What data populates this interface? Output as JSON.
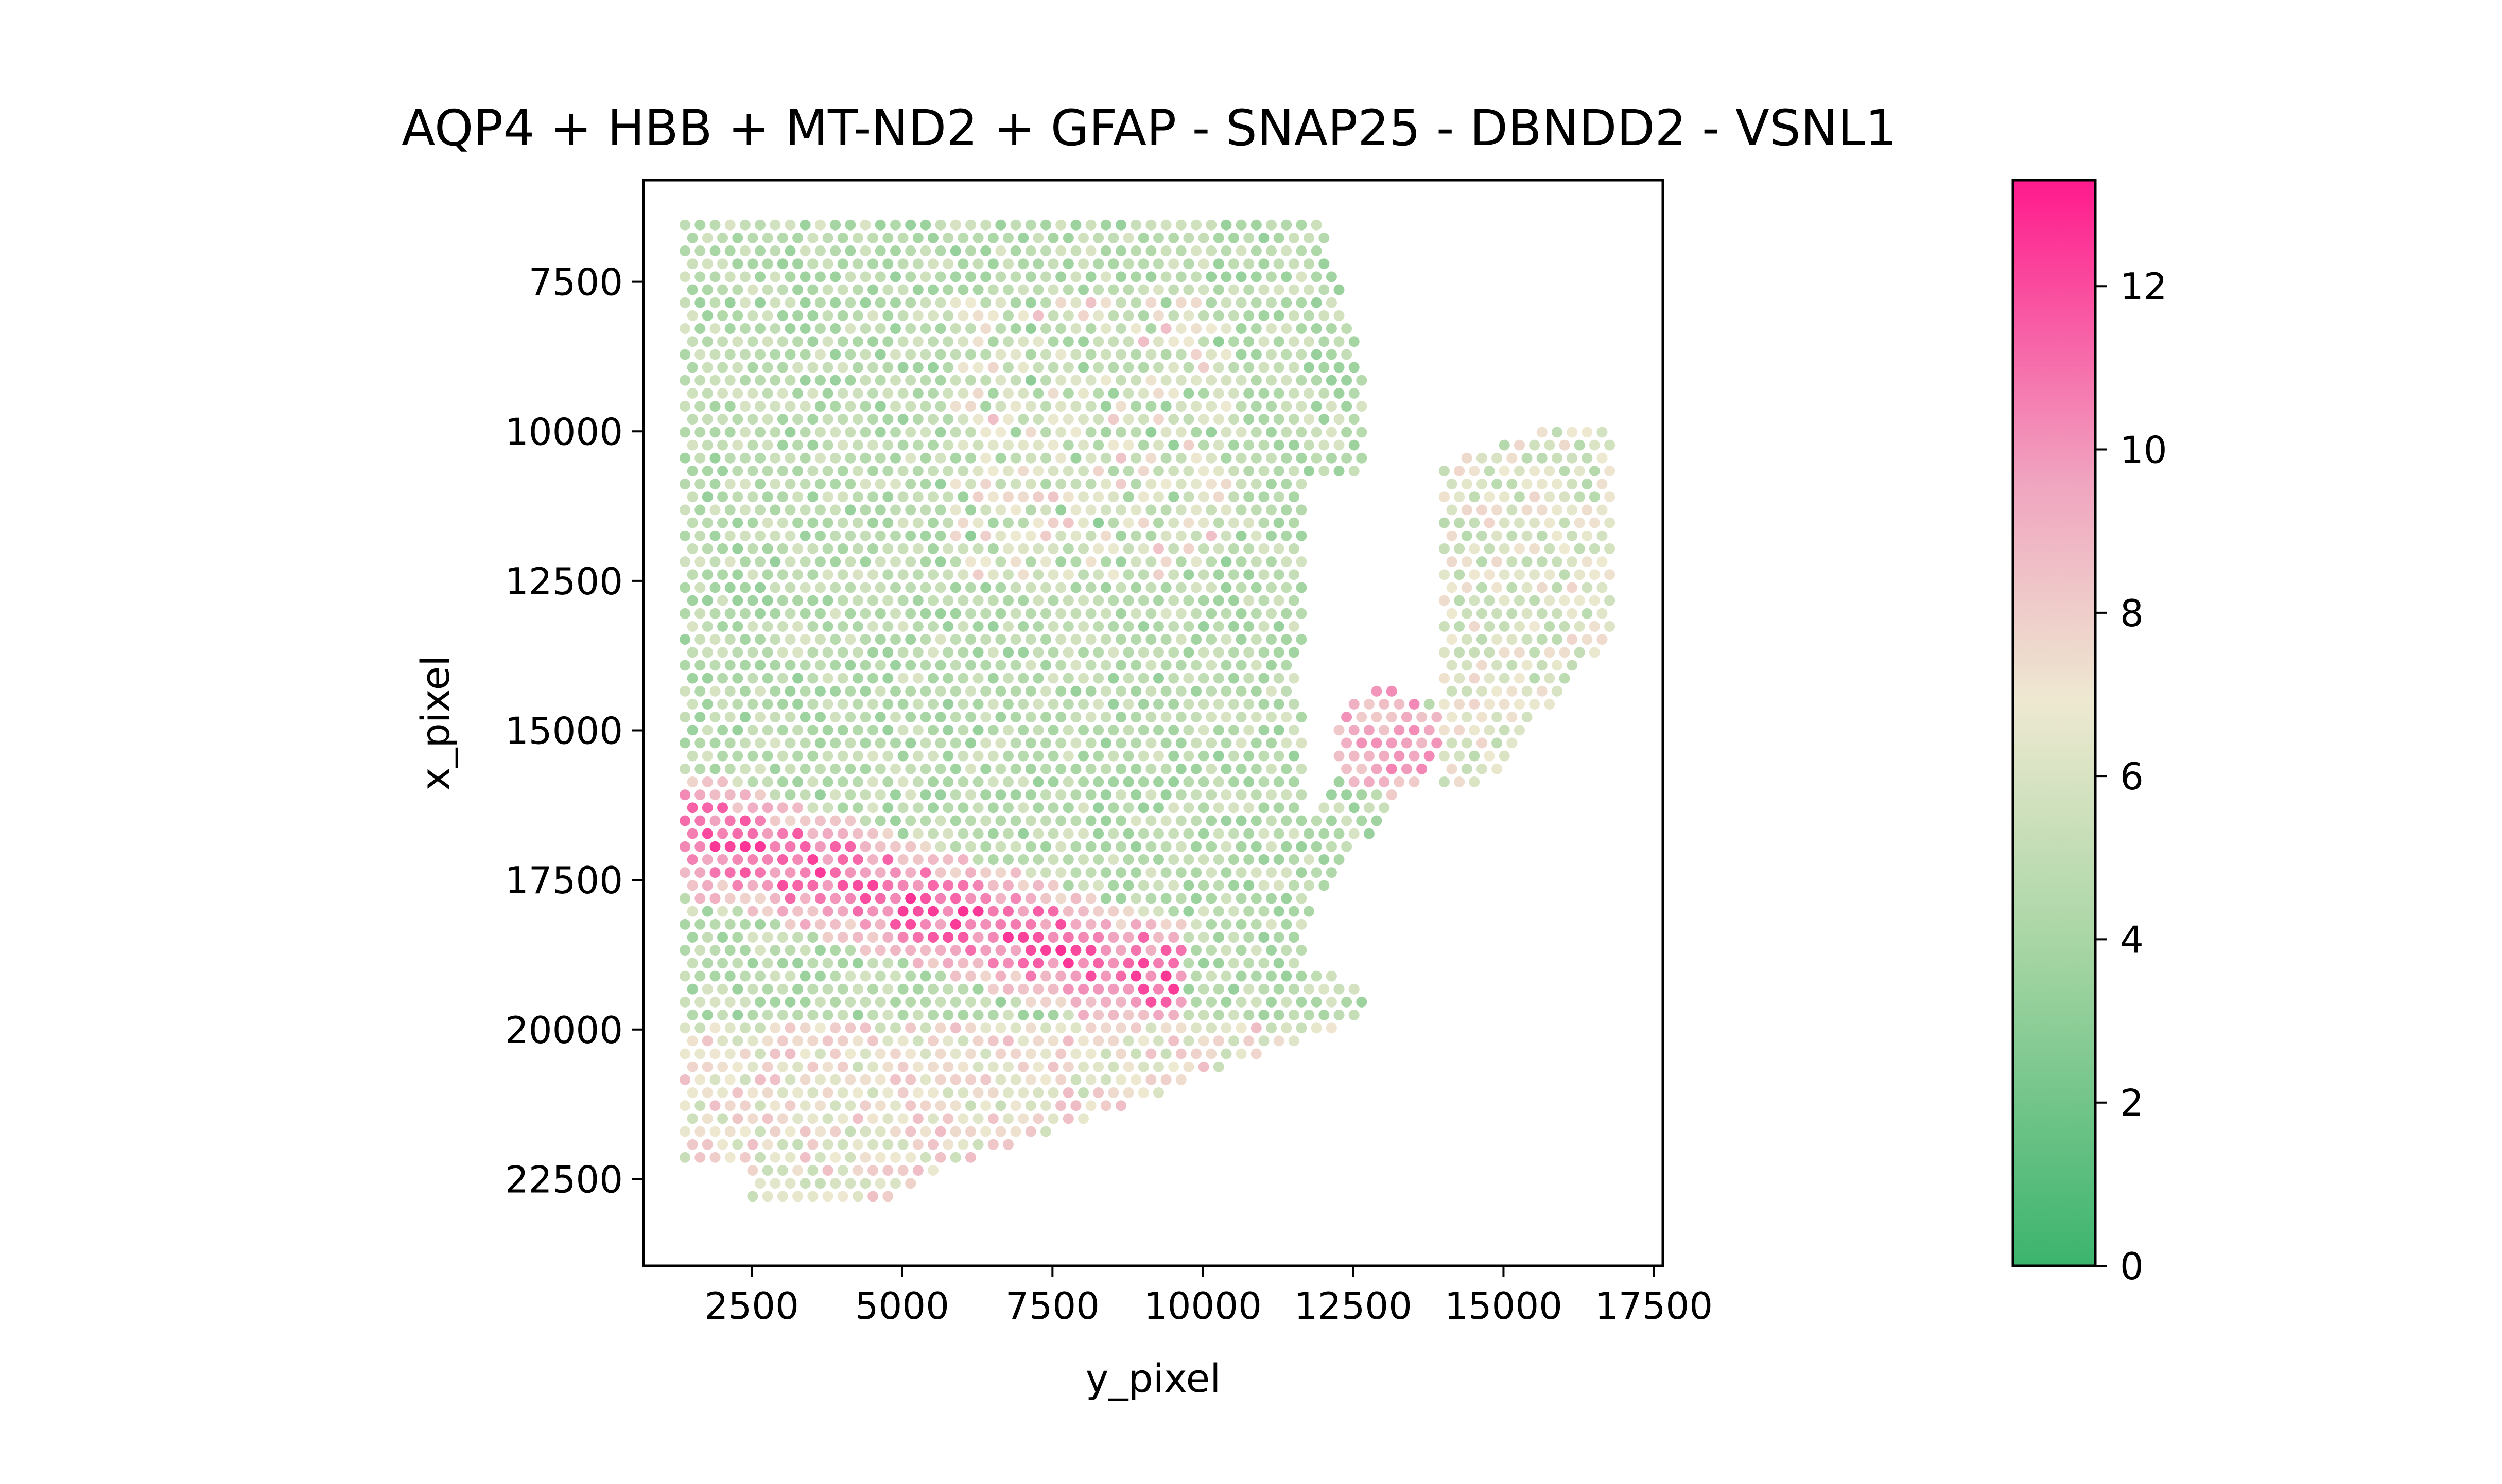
{
  "chart_data": {
    "type": "scatter",
    "title": "AQP4 + HBB + MT-ND2 + GFAP - SNAP25 - DBNDD2 - VSNL1",
    "xlabel": "y_pixel",
    "ylabel": "x_pixel",
    "xlim": [
      700,
      17650
    ],
    "ylim": [
      23950,
      5800
    ],
    "y_inverted": true,
    "xticks": [
      "2500",
      "5000",
      "7500",
      "10000",
      "12500",
      "15000",
      "17500"
    ],
    "yticks": [
      "7500",
      "10000",
      "12500",
      "15000",
      "17500",
      "20000",
      "22500"
    ],
    "colorbar": {
      "min": 0,
      "max": 13.3,
      "ticks": [
        "0",
        "2",
        "4",
        "6",
        "8",
        "10",
        "12"
      ],
      "colors": [
        "#3cb46e",
        "#a9d6a5",
        "#eee9d1",
        "#f0a5c0",
        "#ff1a8c"
      ]
    },
    "grid": false,
    "legend": "colorbar-right",
    "spot_spacing": 250,
    "regions": [
      {
        "name": "main",
        "x_start": 1390,
        "x_end": 13300,
        "y_start": 6550,
        "y_end": 23000
      },
      {
        "name": "right-lobe",
        "x_start": 13900,
        "x_end": 16850,
        "y_start": 10000,
        "y_end": 16000
      }
    ],
    "pink_band": {
      "x_from": 1400,
      "x_to": 9400,
      "y_at_start": 16700,
      "y_at_end": 19200,
      "half_width": 650
    }
  }
}
